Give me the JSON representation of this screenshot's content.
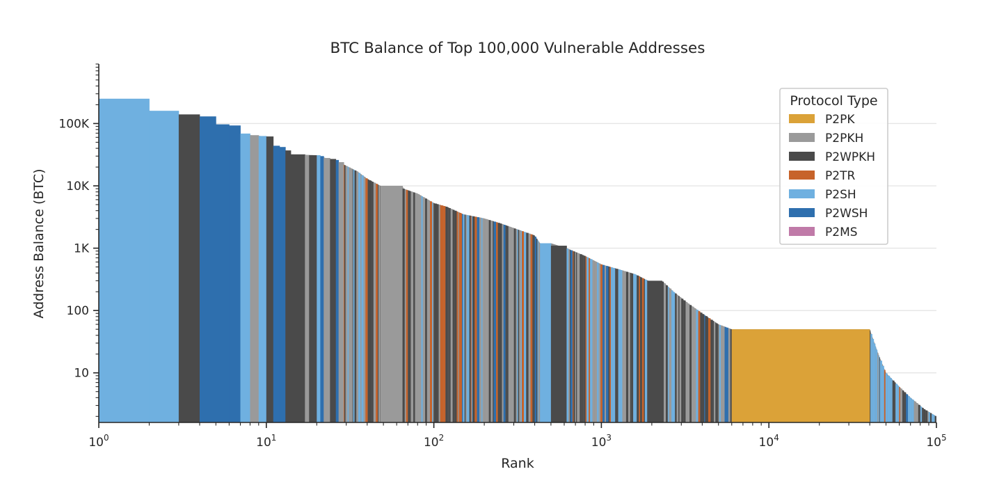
{
  "chart_data": {
    "type": "bar",
    "title": "BTC Balance of Top 100,000 Vulnerable Addresses",
    "xlabel": "Rank",
    "ylabel": "Address Balance (BTC)",
    "x_scale": "log",
    "y_scale": "log",
    "xlim": [
      1,
      100000
    ],
    "ylim": [
      1.6,
      900000
    ],
    "x_ticks": [
      {
        "value": 1,
        "base": "10",
        "exp": "0"
      },
      {
        "value": 10,
        "base": "10",
        "exp": "1"
      },
      {
        "value": 100,
        "base": "10",
        "exp": "2"
      },
      {
        "value": 1000,
        "base": "10",
        "exp": "3"
      },
      {
        "value": 10000,
        "base": "10",
        "exp": "4"
      },
      {
        "value": 100000,
        "base": "10",
        "exp": "5"
      }
    ],
    "y_ticks": [
      {
        "value": 10,
        "label": "10"
      },
      {
        "value": 100,
        "label": "100"
      },
      {
        "value": 1000,
        "label": "1K"
      },
      {
        "value": 10000,
        "label": "10K"
      },
      {
        "value": 100000,
        "label": "100K"
      }
    ],
    "grid": "y-major",
    "legend": {
      "title": "Protocol Type",
      "placement": "top-right",
      "entries": [
        {
          "name": "P2PK",
          "color": "#DBA238"
        },
        {
          "name": "P2PKH",
          "color": "#9A9A9A"
        },
        {
          "name": "P2WPKH",
          "color": "#4A4A4A"
        },
        {
          "name": "P2TR",
          "color": "#C7632A"
        },
        {
          "name": "P2SH",
          "color": "#6FB0E0"
        },
        {
          "name": "P2WSH",
          "color": "#2E6FAE"
        },
        {
          "name": "P2MS",
          "color": "#C07AA8"
        }
      ]
    },
    "segments": [
      {
        "rank_start": 1,
        "rank_end": 2,
        "balance": 250000,
        "protocol": "P2SH"
      },
      {
        "rank_start": 2,
        "rank_end": 3,
        "balance": 160000,
        "protocol": "P2SH"
      },
      {
        "rank_start": 3,
        "rank_end": 4,
        "balance": 140000,
        "protocol": "P2WPKH"
      },
      {
        "rank_start": 4,
        "rank_end": 5,
        "balance": 130000,
        "protocol": "P2WSH"
      },
      {
        "rank_start": 5,
        "rank_end": 6,
        "balance": 97000,
        "protocol": "P2WSH"
      },
      {
        "rank_start": 6,
        "rank_end": 7,
        "balance": 93000,
        "protocol": "P2WSH"
      },
      {
        "rank_start": 7,
        "rank_end": 8,
        "balance": 69000,
        "protocol": "P2SH"
      },
      {
        "rank_start": 8,
        "rank_end": 9,
        "balance": 65000,
        "protocol": "P2PKH"
      },
      {
        "rank_start": 9,
        "rank_end": 10,
        "balance": 63000,
        "protocol": "P2SH"
      },
      {
        "rank_start": 10,
        "rank_end": 11,
        "balance": 62000,
        "protocol": "P2WPKH"
      },
      {
        "rank_start": 11,
        "rank_end": 12,
        "balance": 44000,
        "protocol": "P2WSH"
      },
      {
        "rank_start": 12,
        "rank_end": 13,
        "balance": 42000,
        "protocol": "P2WSH"
      },
      {
        "rank_start": 13,
        "rank_end": 14,
        "balance": 37000,
        "protocol": "P2WPKH"
      },
      {
        "rank_start": 14,
        "rank_end": 17,
        "balance": 32000,
        "protocol": "P2WPKH"
      },
      {
        "rank_start": 17,
        "rank_end": 18,
        "balance": 31000,
        "protocol": "P2PKH"
      },
      {
        "rank_start": 18,
        "rank_end": 20,
        "balance": 31000,
        "protocol": "P2WPKH"
      },
      {
        "rank_start": 20,
        "rank_end": 21,
        "balance": 31000,
        "protocol": "P2SH"
      },
      {
        "rank_start": 21,
        "rank_end": 22,
        "balance": 30000,
        "protocol": "P2WSH"
      },
      {
        "rank_start": 22,
        "rank_end": 24,
        "balance": 28000,
        "protocol": "P2PKH"
      },
      {
        "rank_start": 24,
        "rank_end": 26,
        "balance": 27000,
        "protocol": "P2WPKH"
      },
      {
        "rank_start": 26,
        "rank_end": 27,
        "balance": 26000,
        "protocol": "P2WSH"
      },
      {
        "rank_start": 27,
        "rank_end": 29,
        "balance": 24000,
        "protocol": "P2PKH"
      },
      {
        "rank_start": 29,
        "rank_end": 33,
        "balance": 20000,
        "protocol": "mixed"
      },
      {
        "rank_start": 33,
        "rank_end": 48,
        "balance": 14000,
        "protocol": "mixed"
      },
      {
        "rank_start": 48,
        "rank_end": 65,
        "balance": 10000,
        "protocol": "P2PKH"
      },
      {
        "rank_start": 65,
        "rank_end": 200,
        "balance": 4000,
        "protocol": "mixed"
      },
      {
        "rank_start": 200,
        "rank_end": 430,
        "balance": 2000,
        "protocol": "mixed"
      },
      {
        "rank_start": 430,
        "rank_end": 500,
        "balance": 1200,
        "protocol": "P2SH"
      },
      {
        "rank_start": 500,
        "rank_end": 620,
        "balance": 1000,
        "protocol": "P2WPKH"
      },
      {
        "rank_start": 620,
        "rank_end": 1900,
        "balance": 500,
        "protocol": "mixed"
      },
      {
        "rank_start": 1900,
        "rank_end": 2300,
        "balance": 300,
        "protocol": "P2WPKH"
      },
      {
        "rank_start": 2300,
        "rank_end": 6000,
        "balance": 100,
        "protocol": "mixed"
      },
      {
        "rank_start": 6000,
        "rank_end": 40000,
        "balance": 50,
        "protocol": "P2PK"
      },
      {
        "rank_start": 40000,
        "rank_end": 100000,
        "balance": 4,
        "protocol": "mixed"
      }
    ],
    "curve_points": [
      [
        1,
        250000
      ],
      [
        2,
        160000
      ],
      [
        3,
        140000
      ],
      [
        4,
        130000
      ],
      [
        5,
        97000
      ],
      [
        6,
        93000
      ],
      [
        7,
        69000
      ],
      [
        8,
        65000
      ],
      [
        10,
        62000
      ],
      [
        11,
        44000
      ],
      [
        13,
        37000
      ],
      [
        14,
        32000
      ],
      [
        20,
        31000
      ],
      [
        27,
        24000
      ],
      [
        30,
        21000
      ],
      [
        35,
        17000
      ],
      [
        40,
        13000
      ],
      [
        48,
        10000
      ],
      [
        65,
        10000
      ],
      [
        66,
        9000
      ],
      [
        80,
        7500
      ],
      [
        100,
        5300
      ],
      [
        120,
        4600
      ],
      [
        150,
        3500
      ],
      [
        200,
        3000
      ],
      [
        250,
        2500
      ],
      [
        300,
        2100
      ],
      [
        400,
        1600
      ],
      [
        430,
        1200
      ],
      [
        500,
        1200
      ],
      [
        620,
        1000
      ],
      [
        800,
        750
      ],
      [
        1000,
        550
      ],
      [
        1300,
        450
      ],
      [
        1600,
        380
      ],
      [
        1900,
        300
      ],
      [
        2300,
        300
      ],
      [
        2700,
        200
      ],
      [
        3300,
        130
      ],
      [
        4000,
        90
      ],
      [
        5000,
        60
      ],
      [
        6000,
        50
      ],
      [
        40000,
        50
      ],
      [
        45000,
        20
      ],
      [
        50000,
        10
      ],
      [
        60000,
        6
      ],
      [
        70000,
        4
      ],
      [
        85000,
        2.6
      ],
      [
        100000,
        2.0
      ]
    ]
  }
}
